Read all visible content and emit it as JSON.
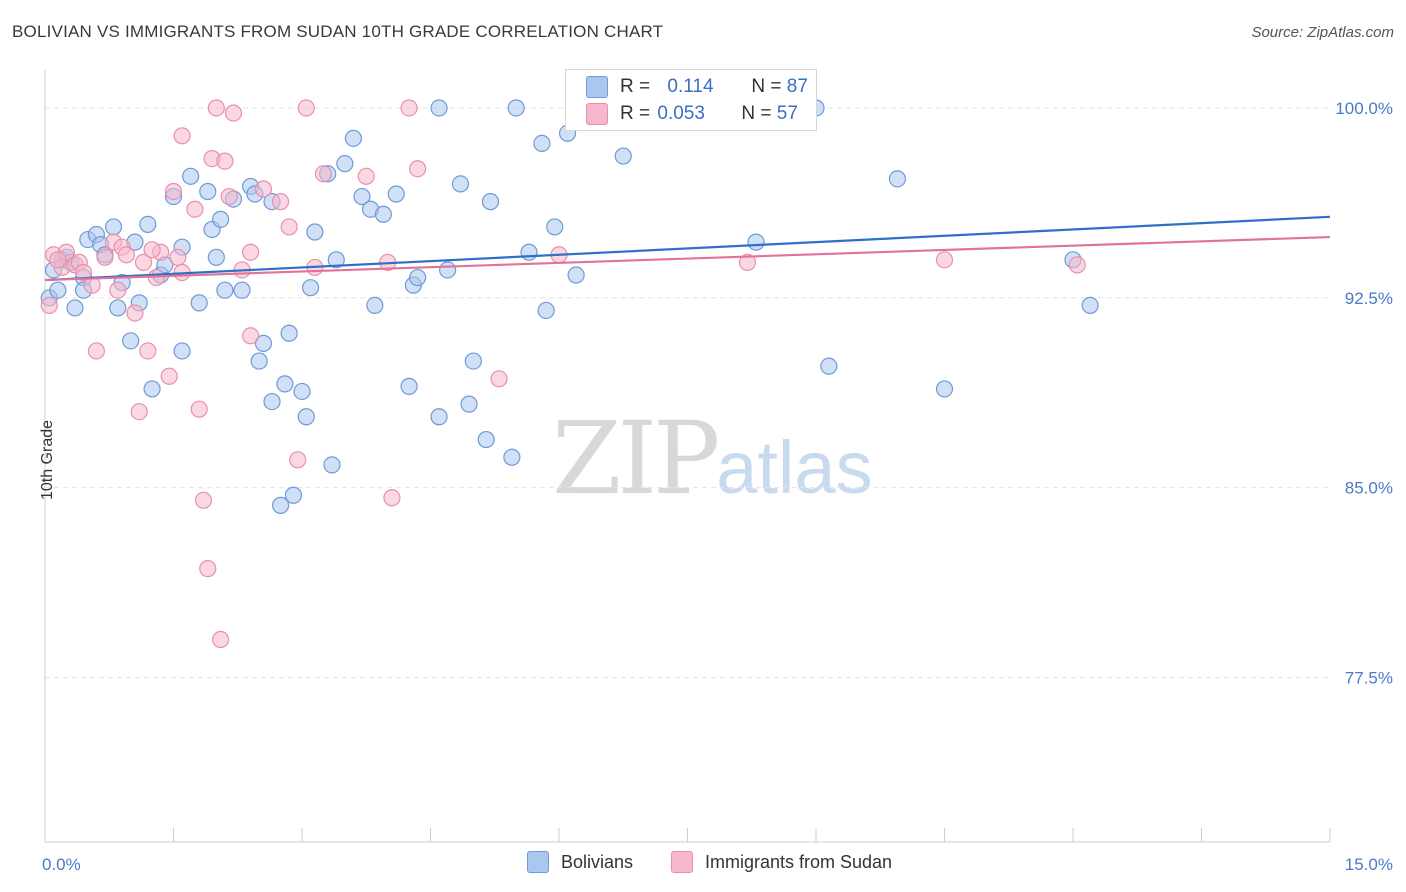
{
  "header": {
    "title": "BOLIVIAN VS IMMIGRANTS FROM SUDAN 10TH GRADE CORRELATION CHART",
    "source": "Source: ZipAtlas.com"
  },
  "legend": {
    "rows": [
      {
        "r_label": "R = ",
        "r_value": "0.114",
        "n_label": "N = ",
        "n_value": "87"
      },
      {
        "r_label": "R = ",
        "r_value": "0.053",
        "n_label": "N = ",
        "n_value": "57"
      }
    ]
  },
  "watermark": {
    "zip": "ZIP",
    "atlas": "atlas"
  },
  "colors": {
    "blue_fill": "#aac7ef",
    "blue_stroke": "#6f9ad6",
    "blue_line": "#2f6fc9",
    "pink_fill": "#f5b8cc",
    "pink_stroke": "#ea8fab",
    "pink_line": "#e0739a",
    "axis_text": "#4a7ac9",
    "grid": "#e3e3e3"
  },
  "chart_data": {
    "type": "scatter",
    "title": "BOLIVIAN VS IMMIGRANTS FROM SUDAN 10TH GRADE CORRELATION CHART",
    "xlabel": "",
    "ylabel": "10th Grade",
    "xlim": [
      0,
      15
    ],
    "ylim": [
      71.0,
      101.5
    ],
    "x_tick_labels": [
      "0.0%",
      "15.0%"
    ],
    "y_ticks": [
      100.0,
      92.5,
      85.0,
      77.5
    ],
    "y_tick_labels": [
      "100.0%",
      "92.5%",
      "85.0%",
      "77.5%"
    ],
    "grid": true,
    "legend_position": "top-center",
    "series": [
      {
        "name": "Bolivians",
        "R": 0.114,
        "N": 87,
        "trend": {
          "x": [
            0,
            15
          ],
          "y": [
            93.2,
            95.7
          ]
        },
        "points": [
          [
            0.05,
            92.5
          ],
          [
            0.1,
            93.6
          ],
          [
            0.15,
            92.8
          ],
          [
            0.2,
            94.0
          ],
          [
            0.25,
            94.1
          ],
          [
            0.3,
            93.9
          ],
          [
            0.35,
            92.1
          ],
          [
            0.45,
            93.3
          ],
          [
            0.5,
            94.8
          ],
          [
            0.6,
            95.0
          ],
          [
            0.65,
            94.6
          ],
          [
            0.7,
            94.2
          ],
          [
            0.8,
            95.3
          ],
          [
            0.85,
            92.1
          ],
          [
            1.0,
            90.8
          ],
          [
            1.05,
            94.7
          ],
          [
            1.1,
            92.3
          ],
          [
            1.2,
            95.4
          ],
          [
            1.25,
            88.9
          ],
          [
            1.35,
            93.4
          ],
          [
            1.5,
            96.5
          ],
          [
            1.6,
            94.5
          ],
          [
            1.6,
            90.4
          ],
          [
            1.7,
            97.3
          ],
          [
            1.8,
            92.3
          ],
          [
            1.9,
            96.7
          ],
          [
            1.95,
            95.2
          ],
          [
            2.05,
            95.6
          ],
          [
            2.1,
            92.8
          ],
          [
            2.2,
            96.4
          ],
          [
            2.3,
            92.8
          ],
          [
            2.4,
            96.9
          ],
          [
            2.45,
            96.6
          ],
          [
            2.5,
            90.0
          ],
          [
            2.55,
            90.7
          ],
          [
            2.65,
            96.3
          ],
          [
            2.75,
            84.3
          ],
          [
            2.8,
            89.1
          ],
          [
            2.85,
            91.1
          ],
          [
            2.9,
            84.7
          ],
          [
            3.0,
            88.8
          ],
          [
            3.05,
            87.8
          ],
          [
            3.1,
            92.9
          ],
          [
            3.15,
            95.1
          ],
          [
            3.3,
            97.4
          ],
          [
            3.35,
            85.9
          ],
          [
            3.5,
            97.8
          ],
          [
            3.6,
            98.8
          ],
          [
            3.7,
            96.5
          ],
          [
            3.8,
            96.0
          ],
          [
            3.85,
            92.2
          ],
          [
            3.95,
            95.8
          ],
          [
            4.1,
            96.6
          ],
          [
            4.25,
            89.0
          ],
          [
            4.3,
            93.0
          ],
          [
            4.35,
            93.3
          ],
          [
            4.6,
            87.8
          ],
          [
            4.6,
            100.0
          ],
          [
            4.7,
            93.6
          ],
          [
            4.85,
            97.0
          ],
          [
            4.95,
            88.3
          ],
          [
            5.0,
            90.0
          ],
          [
            5.15,
            86.9
          ],
          [
            5.2,
            96.3
          ],
          [
            5.5,
            100.0
          ],
          [
            5.45,
            86.2
          ],
          [
            5.65,
            94.3
          ],
          [
            5.8,
            98.6
          ],
          [
            5.85,
            92.0
          ],
          [
            5.95,
            95.3
          ],
          [
            6.1,
            99.0
          ],
          [
            6.2,
            93.4
          ],
          [
            6.75,
            98.1
          ],
          [
            7.0,
            99.6
          ],
          [
            8.3,
            94.7
          ],
          [
            9.0,
            100.0
          ],
          [
            9.15,
            89.8
          ],
          [
            9.95,
            97.2
          ],
          [
            10.5,
            88.9
          ],
          [
            12.0,
            94.0
          ],
          [
            12.2,
            92.2
          ],
          [
            2.65,
            88.4
          ],
          [
            0.45,
            92.8
          ],
          [
            0.9,
            93.1
          ],
          [
            1.4,
            93.8
          ],
          [
            2.0,
            94.1
          ],
          [
            3.4,
            94.0
          ]
        ]
      },
      {
        "name": "Immigrants from Sudan",
        "R": 0.053,
        "N": 57,
        "trend": {
          "x": [
            0,
            15
          ],
          "y": [
            93.2,
            94.9
          ]
        },
        "points": [
          [
            0.05,
            92.2
          ],
          [
            0.1,
            94.2
          ],
          [
            0.2,
            93.7
          ],
          [
            0.25,
            94.3
          ],
          [
            0.35,
            93.8
          ],
          [
            0.4,
            93.9
          ],
          [
            0.45,
            93.5
          ],
          [
            0.55,
            93.0
          ],
          [
            0.6,
            90.4
          ],
          [
            0.7,
            94.1
          ],
          [
            0.8,
            94.7
          ],
          [
            0.85,
            92.8
          ],
          [
            0.9,
            94.5
          ],
          [
            0.95,
            94.2
          ],
          [
            1.05,
            91.9
          ],
          [
            1.1,
            88.0
          ],
          [
            1.15,
            93.9
          ],
          [
            1.2,
            90.4
          ],
          [
            1.3,
            93.3
          ],
          [
            1.35,
            94.3
          ],
          [
            1.45,
            89.4
          ],
          [
            1.5,
            96.7
          ],
          [
            1.55,
            94.1
          ],
          [
            1.6,
            93.5
          ],
          [
            1.6,
            98.9
          ],
          [
            1.75,
            96.0
          ],
          [
            1.8,
            88.1
          ],
          [
            1.85,
            84.5
          ],
          [
            1.9,
            81.8
          ],
          [
            1.95,
            98.0
          ],
          [
            2.0,
            100.0
          ],
          [
            2.05,
            79.0
          ],
          [
            2.1,
            97.9
          ],
          [
            2.15,
            96.5
          ],
          [
            2.2,
            99.8
          ],
          [
            2.3,
            93.6
          ],
          [
            2.4,
            91.0
          ],
          [
            2.4,
            94.3
          ],
          [
            2.55,
            96.8
          ],
          [
            2.75,
            96.3
          ],
          [
            2.85,
            95.3
          ],
          [
            2.95,
            86.1
          ],
          [
            3.05,
            100.0
          ],
          [
            3.15,
            93.7
          ],
          [
            3.25,
            97.4
          ],
          [
            3.75,
            97.3
          ],
          [
            4.0,
            93.9
          ],
          [
            4.05,
            84.6
          ],
          [
            4.25,
            100.0
          ],
          [
            4.35,
            97.6
          ],
          [
            5.3,
            89.3
          ],
          [
            6.0,
            94.2
          ],
          [
            8.2,
            93.9
          ],
          [
            10.5,
            94.0
          ],
          [
            12.05,
            93.8
          ],
          [
            0.15,
            94.0
          ],
          [
            1.25,
            94.4
          ]
        ]
      }
    ]
  },
  "bottom_legend": {
    "items": [
      "Bolivians",
      "Immigrants from Sudan"
    ]
  }
}
